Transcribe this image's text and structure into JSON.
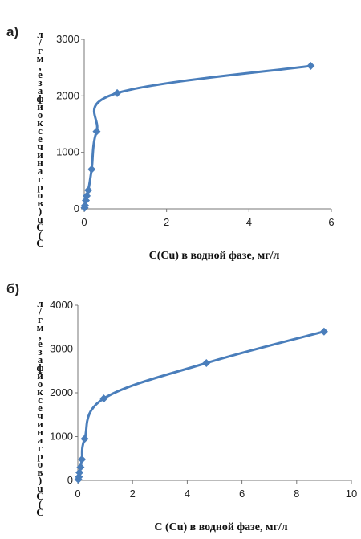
{
  "chart_data": [
    {
      "panel_label": "а)",
      "type": "line",
      "xlabel": "C(Cu) в водной фазе, мг/л",
      "ylabel": "С(Cu) в органической фазе, мг/л",
      "xlim": [
        0,
        6
      ],
      "ylim": [
        0,
        3000
      ],
      "xticks": [
        "0",
        "2",
        "4",
        "6"
      ],
      "yticks": [
        "0",
        "1000",
        "2000",
        "3000"
      ],
      "series": [
        {
          "color": "#4a7ebb",
          "marker": "diamond",
          "x": [
            0.01,
            0.02,
            0.04,
            0.06,
            0.1,
            0.18,
            0.3,
            0.8,
            5.5
          ],
          "y": [
            20,
            60,
            150,
            230,
            330,
            700,
            1370,
            2050,
            2530
          ]
        }
      ]
    },
    {
      "panel_label": "б)",
      "type": "line",
      "xlabel": "C (Cu) в водной фазе, мг/л",
      "ylabel": "С(Cu) в органической фазе, мг/л",
      "xlim": [
        0,
        10
      ],
      "ylim": [
        0,
        4000
      ],
      "xticks": [
        "0",
        "2",
        "4",
        "6",
        "8",
        "10"
      ],
      "yticks": [
        "0",
        "1000",
        "2000",
        "3000",
        "4000"
      ],
      "series": [
        {
          "color": "#4a7ebb",
          "marker": "diamond",
          "x": [
            0.02,
            0.04,
            0.06,
            0.1,
            0.15,
            0.25,
            0.95,
            4.7,
            9.0
          ],
          "y": [
            20,
            80,
            180,
            300,
            480,
            950,
            1870,
            2680,
            3400
          ]
        }
      ]
    }
  ]
}
